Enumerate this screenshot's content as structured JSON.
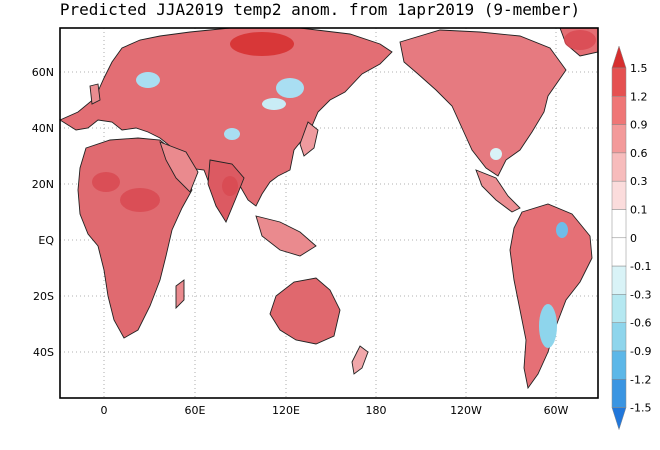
{
  "title": "Predicted JJA2019 temp2 anom. from 1apr2019 (9-member)",
  "lat_ticks": [
    "60N",
    "40N",
    "20N",
    "EQ",
    "20S",
    "40S"
  ],
  "lon_ticks": [
    "0",
    "60E",
    "120E",
    "180",
    "120W",
    "60W"
  ],
  "colorbar": {
    "labels": [
      "1.5",
      "1.2",
      "0.9",
      "0.6",
      "0.3",
      "0.1",
      "0",
      "-0.1",
      "-0.3",
      "-0.6",
      "-0.9",
      "-1.2",
      "-1.5"
    ],
    "colors": [
      "#d62e2e",
      "#e55050",
      "#ef7676",
      "#f39a9a",
      "#f7bcbc",
      "#fbdcdc",
      "#ffffff",
      "#d9f3f7",
      "#b5e8f1",
      "#8ed5ec",
      "#5cb7e8",
      "#3a95e2",
      "#2177db"
    ]
  },
  "colors": {
    "warm": "#e8747a",
    "warm_strong": "#d94a52",
    "warm_light": "#f1a7aa",
    "cool": "#a9def2",
    "cool_strong": "#6fbde9"
  }
}
